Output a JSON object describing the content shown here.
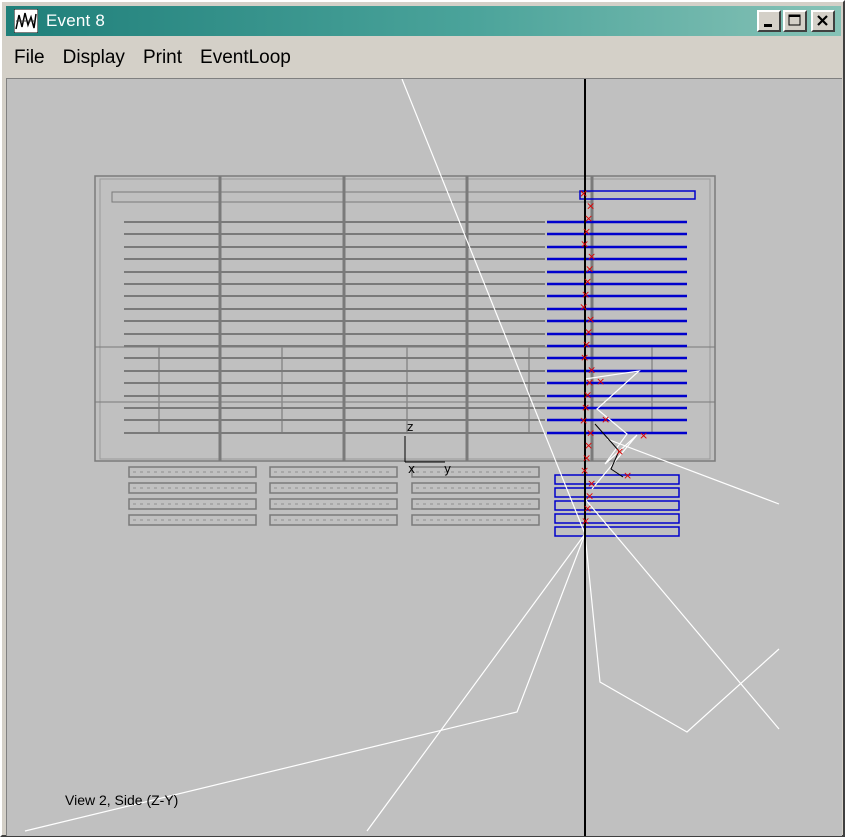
{
  "window": {
    "title": "Event 8",
    "buttons": [
      "minimize",
      "maximize",
      "close"
    ]
  },
  "menu": [
    "File",
    "Display",
    "Print",
    "EventLoop"
  ],
  "view": {
    "label": "View 2, Side (Z-Y)",
    "axis_labels": {
      "z": "z",
      "x": "x",
      "y": "y"
    }
  },
  "icons": {
    "app": "event-display-icon",
    "minimize": "minimize-icon",
    "maximize": "maximize-icon",
    "close": "close-icon"
  },
  "colors": {
    "title_gradient_start": "#1f7f7a",
    "title_gradient_end": "#86c2b6",
    "canvas_bg": "#c0c0c0",
    "detector_gray": "#7a7a7a",
    "hit_blue": "#0000cc",
    "hit_red": "#e00000",
    "track_white": "#ffffff",
    "beam_black": "#000000"
  }
}
